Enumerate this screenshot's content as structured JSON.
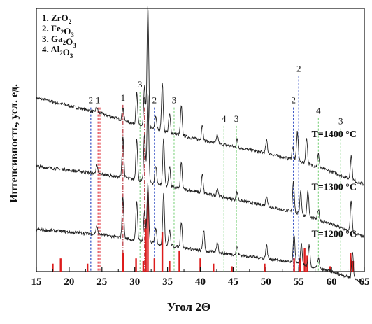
{
  "chart_data": {
    "type": "line",
    "title": "",
    "xlabel": "Угол 2Θ",
    "ylabel": "Интенсивность, усл. ед.",
    "xlim": [
      15,
      65
    ],
    "xticks": [
      15,
      20,
      25,
      30,
      35,
      40,
      45,
      50,
      55,
      60,
      65
    ],
    "legend": {
      "placement": "top-left",
      "entries": [
        {
          "num": "1.",
          "formula": [
            [
              "Zr",
              ""
            ],
            [
              "O",
              "2"
            ]
          ]
        },
        {
          "num": "2.",
          "formula": [
            [
              "Fe",
              "2"
            ],
            [
              "O",
              "3"
            ]
          ]
        },
        {
          "num": "3.",
          "formula": [
            [
              "Ga",
              "2"
            ],
            [
              "O",
              "3"
            ]
          ]
        },
        {
          "num": "4.",
          "formula": [
            [
              "Al",
              "2"
            ],
            [
              "O",
              "3"
            ]
          ]
        }
      ]
    },
    "series": [
      {
        "name": "T=1400 °C",
        "baseline": [
          [
            15,
            0.66
          ],
          [
            25,
            0.6
          ],
          [
            30,
            0.56
          ],
          [
            40,
            0.5
          ],
          [
            50,
            0.45
          ],
          [
            55,
            0.42
          ],
          [
            60,
            0.38
          ],
          [
            65,
            0.33
          ]
        ],
        "peaks": [
          [
            24.2,
            0.02
          ],
          [
            28.2,
            0.05
          ],
          [
            30.3,
            0.12
          ],
          [
            31.5,
            0.15
          ],
          [
            32.0,
            0.46
          ],
          [
            33.2,
            0.05
          ],
          [
            34.2,
            0.18
          ],
          [
            35.3,
            0.07
          ],
          [
            37.1,
            0.11
          ],
          [
            40.3,
            0.06
          ],
          [
            42.6,
            0.03
          ],
          [
            45.6,
            0.03
          ],
          [
            50.1,
            0.05
          ],
          [
            54.1,
            0.05
          ],
          [
            54.8,
            0.11
          ],
          [
            56.2,
            0.1
          ],
          [
            58.0,
            0.05
          ],
          [
            63.0,
            0.09
          ]
        ]
      },
      {
        "name": "T=1300 °C",
        "baseline": [
          [
            15,
            0.4
          ],
          [
            25,
            0.37
          ],
          [
            30,
            0.35
          ],
          [
            40,
            0.3
          ],
          [
            50,
            0.25
          ],
          [
            55,
            0.22
          ],
          [
            60,
            0.18
          ],
          [
            65,
            0.13
          ]
        ],
        "peaks": [
          [
            24.2,
            0.03
          ],
          [
            28.2,
            0.16
          ],
          [
            30.3,
            0.16
          ],
          [
            31.5,
            0.18
          ],
          [
            32.0,
            0.34
          ],
          [
            33.2,
            0.07
          ],
          [
            34.4,
            0.18
          ],
          [
            35.3,
            0.08
          ],
          [
            37.1,
            0.1
          ],
          [
            40.3,
            0.07
          ],
          [
            42.6,
            0.03
          ],
          [
            45.6,
            0.03
          ],
          [
            50.1,
            0.04
          ],
          [
            54.2,
            0.12
          ],
          [
            55.3,
            0.09
          ],
          [
            56.4,
            0.1
          ],
          [
            58.0,
            0.04
          ],
          [
            63.0,
            0.12
          ]
        ]
      },
      {
        "name": "T=1200 °C",
        "baseline": [
          [
            15,
            0.16
          ],
          [
            25,
            0.14
          ],
          [
            30,
            0.12
          ],
          [
            40,
            0.08
          ],
          [
            50,
            0.05
          ],
          [
            55,
            0.03
          ],
          [
            60,
            0.0
          ],
          [
            65,
            -0.04
          ]
        ],
        "peaks": [
          [
            24.2,
            0.03
          ],
          [
            28.2,
            0.16
          ],
          [
            30.3,
            0.15
          ],
          [
            31.5,
            0.12
          ],
          [
            32.0,
            0.22
          ],
          [
            33.2,
            0.06
          ],
          [
            34.4,
            0.2
          ],
          [
            35.3,
            0.06
          ],
          [
            37.1,
            0.1
          ],
          [
            40.5,
            0.08
          ],
          [
            42.6,
            0.04
          ],
          [
            45.6,
            0.03
          ],
          [
            50.1,
            0.05
          ],
          [
            54.3,
            0.11
          ],
          [
            55.4,
            0.08
          ],
          [
            56.6,
            0.08
          ],
          [
            58.0,
            0.04
          ],
          [
            63.2,
            0.1
          ]
        ]
      }
    ],
    "reference_lines": [
      {
        "x": 23.3,
        "label": "2",
        "color": "#1f3fbf",
        "y_top": 0.65
      },
      {
        "x": 24.4,
        "label": "1",
        "color": "#e0303a",
        "y_top": 0.65
      },
      {
        "x": 24.7,
        "label": "",
        "color": "#e0303a",
        "y_top": 0.65
      },
      {
        "x": 28.2,
        "label": "1",
        "color": "#b0202a",
        "y_top": 0.66
      },
      {
        "x": 30.8,
        "label": "3",
        "color": "#7fd27f",
        "y_top": 0.71
      },
      {
        "x": 31.5,
        "label": "1",
        "color": "#b0202a",
        "y_top": 0.65
      },
      {
        "x": 33.0,
        "label": "2",
        "color": "#1f3fbf",
        "y_top": 0.65
      },
      {
        "x": 36.0,
        "label": "3",
        "color": "#7fd27f",
        "y_top": 0.65
      },
      {
        "x": 43.6,
        "label": "4",
        "color": "#7fd27f",
        "y_top": 0.58
      },
      {
        "x": 45.5,
        "label": "3",
        "color": "#7fd27f",
        "y_top": 0.58
      },
      {
        "x": 54.2,
        "label": "2",
        "color": "#1f3fbf",
        "y_top": 0.65
      },
      {
        "x": 55.0,
        "label": "2",
        "color": "#1f3fbf",
        "y_top": 0.77
      },
      {
        "x": 58.0,
        "label": "4",
        "color": "#7fd27f",
        "y_top": 0.61
      },
      {
        "x": 61.4,
        "label": "3",
        "color": "#7fd27f",
        "y_top": 0.57
      }
    ],
    "reference_bars": {
      "color": "#dd1c1c",
      "items": [
        [
          17.5,
          0.03
        ],
        [
          18.7,
          0.05
        ],
        [
          22.8,
          0.03
        ],
        [
          28.2,
          0.07
        ],
        [
          30.2,
          0.05
        ],
        [
          31.3,
          0.04
        ],
        [
          31.7,
          0.2
        ],
        [
          32.0,
          0.3
        ],
        [
          33.0,
          0.05
        ],
        [
          34.2,
          0.15
        ],
        [
          35.3,
          0.04
        ],
        [
          36.8,
          0.08
        ],
        [
          40.0,
          0.05
        ],
        [
          42.0,
          0.03
        ],
        [
          44.8,
          0.02
        ],
        [
          49.8,
          0.03
        ],
        [
          54.3,
          0.05
        ],
        [
          55.2,
          0.05
        ],
        [
          55.9,
          0.09
        ],
        [
          56.3,
          0.06
        ],
        [
          59.8,
          0.02
        ],
        [
          62.9,
          0.07
        ],
        [
          63.3,
          0.04
        ]
      ]
    }
  }
}
